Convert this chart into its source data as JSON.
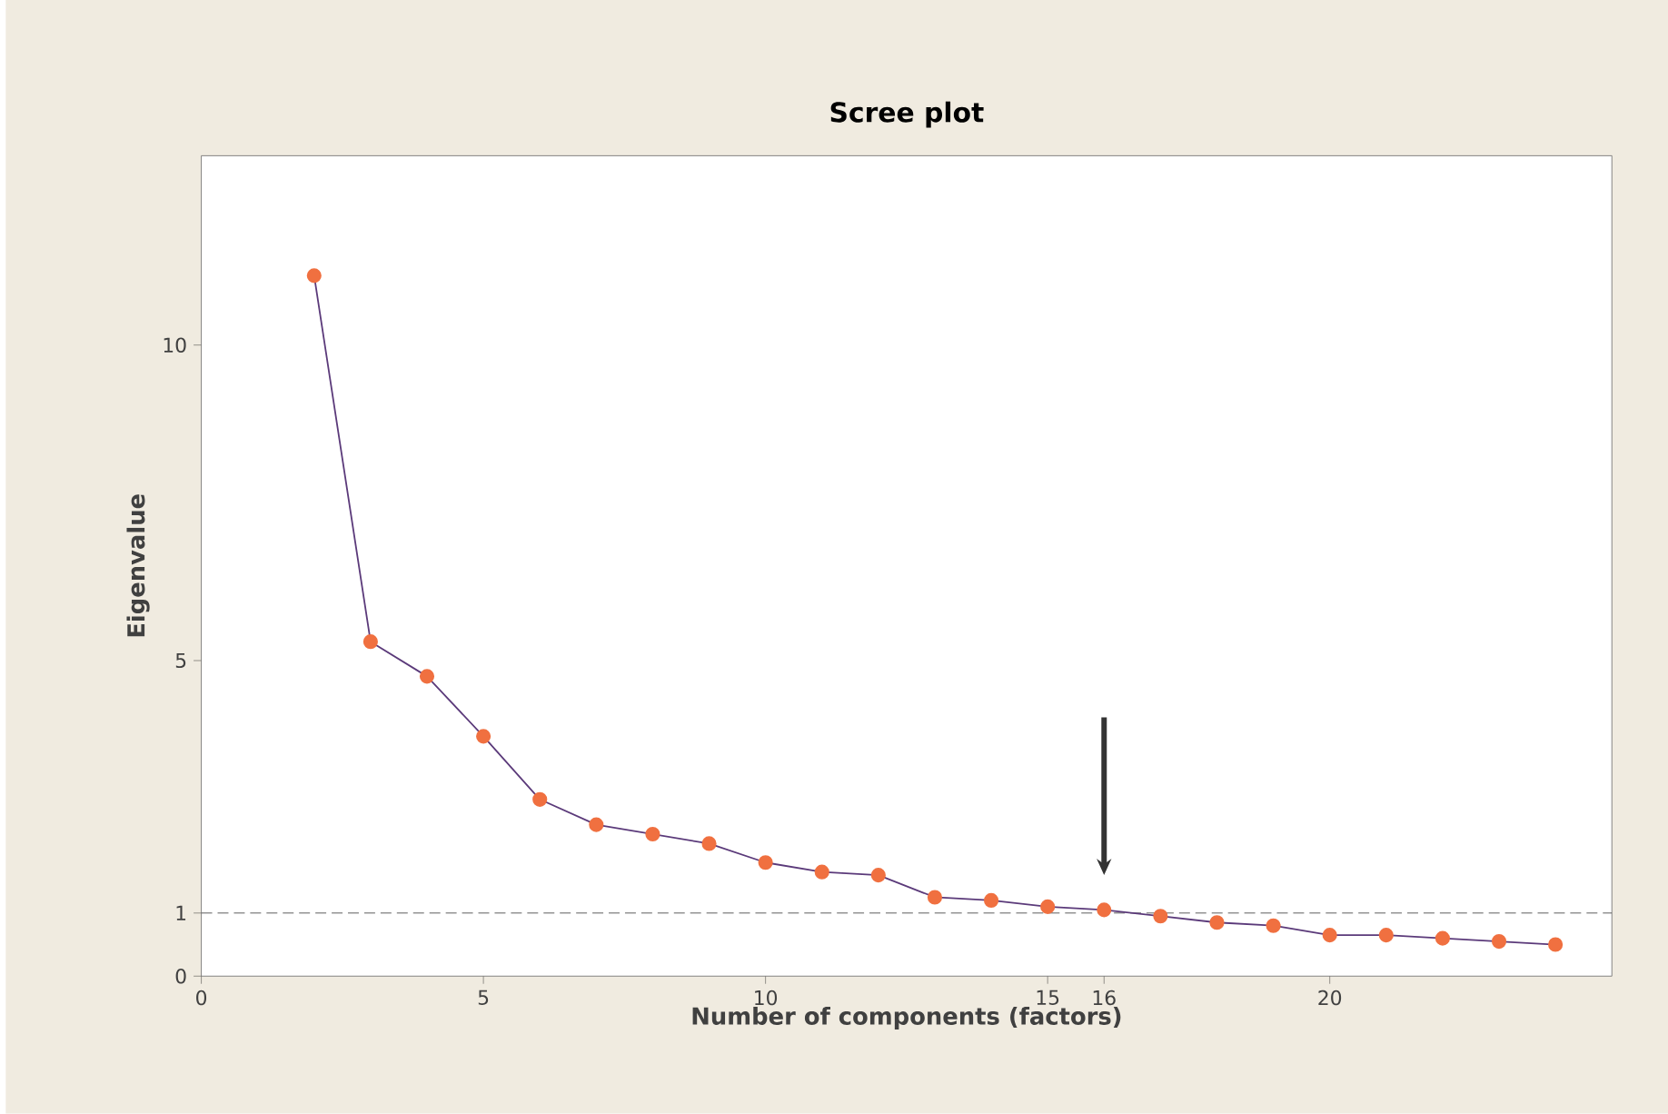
{
  "chart_data": {
    "type": "line",
    "title": "Scree plot",
    "xlabel": "Number of components (factors)",
    "ylabel": "Eigenvalue",
    "x": [
      2,
      3,
      4,
      5,
      6,
      7,
      8,
      9,
      10,
      11,
      12,
      13,
      14,
      15,
      16,
      17,
      18,
      19,
      20,
      21,
      22,
      23,
      24
    ],
    "series": [
      {
        "color": "#f07040",
        "values": [
          11.1,
          5.3,
          4.75,
          3.8,
          2.8,
          2.4,
          2.25,
          2.1,
          1.8,
          1.65,
          1.6,
          1.25,
          1.2,
          1.1,
          1.05,
          0.95,
          0.85,
          0.8,
          0.65,
          0.65,
          0.6,
          0.55,
          0.5
        ]
      }
    ],
    "marker": "circle",
    "xlim": [
      0,
      25
    ],
    "ylim": [
      0,
      13
    ],
    "xticks": [
      0,
      5,
      10,
      15,
      16,
      20
    ],
    "yticks": [
      0,
      1,
      5,
      10
    ],
    "ref_lines": [
      {
        "axis": "y",
        "value": 1,
        "line_style": "dashed",
        "color": "#333333"
      }
    ],
    "grid": false
  }
}
